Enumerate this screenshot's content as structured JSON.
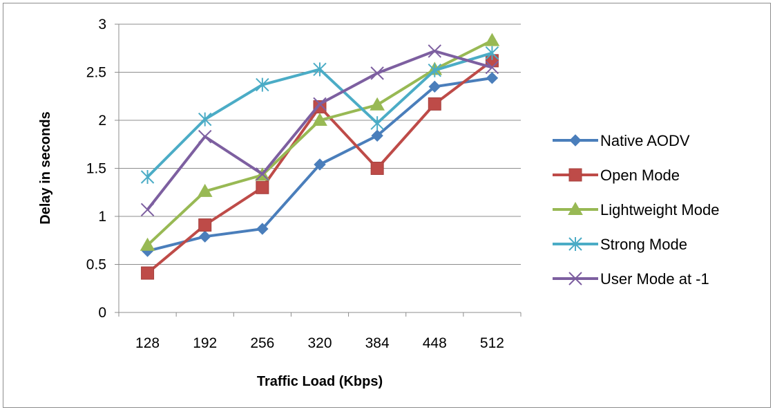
{
  "chart_data": {
    "type": "line",
    "title": "",
    "xlabel": "Traffic Load (Kbps)",
    "ylabel": "Delay in seconds",
    "categories": [
      "128",
      "192",
      "256",
      "320",
      "384",
      "448",
      "512"
    ],
    "ylim": [
      0,
      3
    ],
    "yticks": [
      "0",
      "0.5",
      "1",
      "1.5",
      "2",
      "2.5",
      "3"
    ],
    "grid": true,
    "legend_position": "right",
    "series": [
      {
        "name": "Native AODV",
        "color": "#4a7ebb",
        "marker": "diamond",
        "values": [
          0.64,
          0.79,
          0.87,
          1.54,
          1.84,
          2.35,
          2.44
        ]
      },
      {
        "name": "Open Mode",
        "color": "#be4b48",
        "marker": "square",
        "values": [
          0.41,
          0.91,
          1.3,
          2.14,
          1.5,
          2.17,
          2.62
        ]
      },
      {
        "name": "Lightweight Mode",
        "color": "#98b954",
        "marker": "triangle",
        "values": [
          0.7,
          1.26,
          1.43,
          2.0,
          2.16,
          2.53,
          2.83
        ]
      },
      {
        "name": "Strong Mode",
        "color": "#4bacc6",
        "marker": "star",
        "values": [
          1.41,
          2.01,
          2.37,
          2.53,
          1.97,
          2.52,
          2.7
        ]
      },
      {
        "name": "User Mode at -1",
        "color": "#7d5fa0",
        "marker": "x",
        "values": [
          1.07,
          1.83,
          1.44,
          2.17,
          2.49,
          2.72,
          2.55
        ]
      }
    ]
  }
}
